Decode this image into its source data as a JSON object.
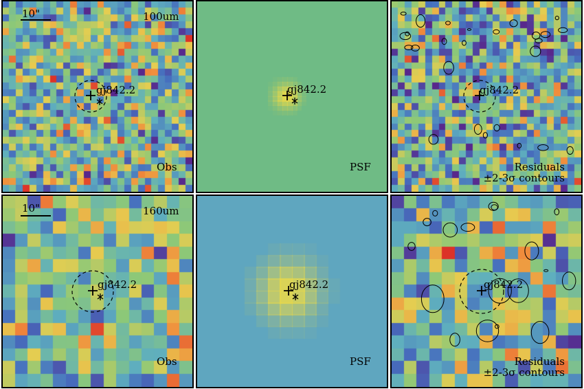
{
  "rows": [
    {
      "band": "100um",
      "scale_bar": "10\"",
      "source": "gj842.2",
      "panels": [
        {
          "key": "obs",
          "label": "Obs"
        },
        {
          "key": "psf",
          "label": "PSF"
        },
        {
          "key": "res",
          "label": "Residuals",
          "sublabel": "±2-3σ contours"
        }
      ]
    },
    {
      "band": "160um",
      "scale_bar": "10\"",
      "source": "gj842.2",
      "panels": [
        {
          "key": "obs",
          "label": "Obs"
        },
        {
          "key": "psf",
          "label": "PSF"
        },
        {
          "key": "res",
          "label": "Residuals",
          "sublabel": "±2-3σ contours"
        }
      ]
    }
  ],
  "colors": {
    "psf_bg_100": "#6fbb85",
    "psf_bg_160": "#5fa6bf",
    "psf_core": "#e8d84a"
  }
}
